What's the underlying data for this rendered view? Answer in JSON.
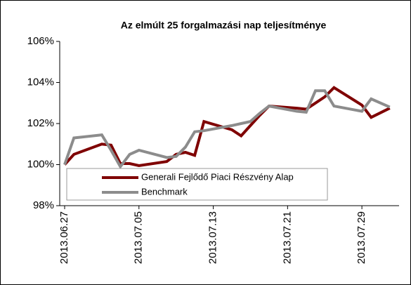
{
  "chart_data": {
    "type": "line",
    "title": "Az elmúlt 25 forgalmazási nap teljesítménye",
    "x": [
      "2013.06.27",
      "2013.06.28",
      "2013.07.01",
      "2013.07.02",
      "2013.07.03",
      "2013.07.04",
      "2013.07.05",
      "2013.07.08",
      "2013.07.09",
      "2013.07.10",
      "2013.07.11",
      "2013.07.12",
      "2013.07.15",
      "2013.07.16",
      "2013.07.17",
      "2013.07.18",
      "2013.07.19",
      "2013.07.22",
      "2013.07.23",
      "2013.07.24",
      "2013.07.25",
      "2013.07.26",
      "2013.07.29",
      "2013.07.30",
      "2013.08.01"
    ],
    "series": [
      {
        "name": "Generali Fejlődő Piaci Részvény Alap",
        "color": "#7f0000",
        "values": [
          100.0,
          100.5,
          101.0,
          100.95,
          100.05,
          100.05,
          99.95,
          100.15,
          100.5,
          100.6,
          100.45,
          102.1,
          101.7,
          101.4,
          101.9,
          102.4,
          102.85,
          102.75,
          102.7,
          103.0,
          103.3,
          103.75,
          102.9,
          102.3,
          102.75
        ]
      },
      {
        "name": "Benchmark",
        "color": "#8c8c8c",
        "values": [
          100.0,
          101.3,
          101.45,
          100.7,
          99.9,
          100.5,
          100.7,
          100.35,
          100.4,
          100.85,
          101.6,
          101.65,
          101.9,
          102.0,
          102.1,
          102.5,
          102.85,
          102.6,
          102.55,
          103.6,
          103.6,
          102.85,
          102.6,
          103.2,
          102.8
        ]
      }
    ],
    "xlim": [
      "2013.06.27",
      "2013.08.02"
    ],
    "xticks": [
      "2013.06.27",
      "2013.07.05",
      "2013.07.13",
      "2013.07.21",
      "2013.07.29"
    ],
    "ylim": [
      98,
      106
    ],
    "yticks": [
      {
        "value": 98,
        "label": "98%"
      },
      {
        "value": 100,
        "label": "100%"
      },
      {
        "value": 102,
        "label": "102%"
      },
      {
        "value": 104,
        "label": "104%"
      },
      {
        "value": 106,
        "label": "106%"
      }
    ],
    "grid": false
  }
}
